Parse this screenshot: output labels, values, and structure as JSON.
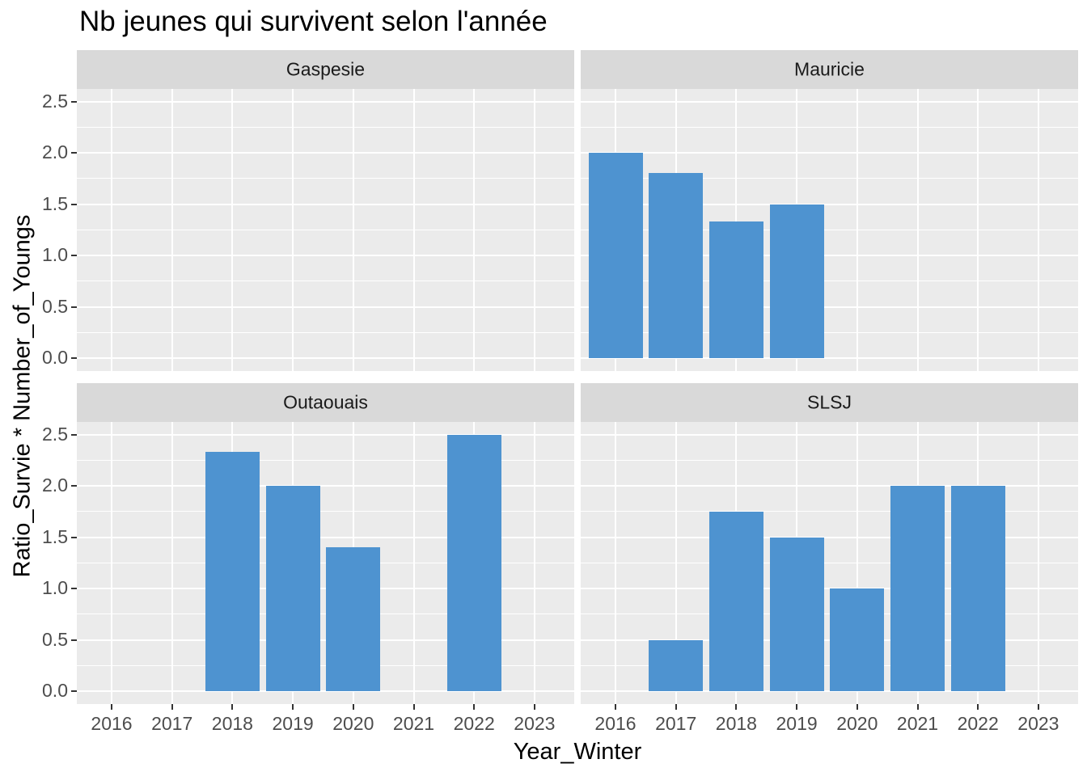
{
  "chart_data": {
    "type": "bar",
    "title": "Nb jeunes qui survivent selon l'année",
    "xlabel": "Year_Winter",
    "ylabel": "Ratio_Survie * Number_of_Youngs",
    "x_tick_labels": [
      "2016",
      "2017",
      "2018",
      "2019",
      "2020",
      "2021",
      "2022",
      "2023"
    ],
    "y_tick_labels": [
      "0.0",
      "0.5",
      "1.0",
      "1.5",
      "2.0",
      "2.5"
    ],
    "x_tick_years": [
      2016,
      2017,
      2018,
      2019,
      2020,
      2021,
      2022,
      2023
    ],
    "y_tick_values": [
      0,
      0.5,
      1,
      1.5,
      2,
      2.5
    ],
    "y_minor_values": [
      0.25,
      0.75,
      1.25,
      1.75,
      2.25
    ],
    "ylim": [
      0,
      2.5
    ],
    "grid": "white major horizontal+vertical, minor horizontal only, on grey panels",
    "legend_position": "none",
    "facet_layout": [
      [
        "Gaspesie",
        "Mauricie"
      ],
      [
        "Outaouais",
        "SLSJ"
      ]
    ],
    "facets": [
      {
        "name": "Gaspesie",
        "row": 0,
        "col": 0,
        "x": [],
        "values": []
      },
      {
        "name": "Mauricie",
        "row": 0,
        "col": 1,
        "x": [
          2016,
          2017,
          2018,
          2019
        ],
        "values": [
          2.0,
          1.8,
          1.33,
          1.5
        ]
      },
      {
        "name": "Outaouais",
        "row": 1,
        "col": 0,
        "x": [
          2018,
          2019,
          2020,
          2022
        ],
        "values": [
          2.33,
          2.0,
          1.4,
          2.5
        ]
      },
      {
        "name": "SLSJ",
        "row": 1,
        "col": 1,
        "x": [
          2017,
          2018,
          2019,
          2020,
          2021,
          2022
        ],
        "values": [
          0.5,
          1.75,
          1.5,
          1.0,
          2.0,
          2.0
        ]
      }
    ],
    "colors": {
      "bar": "#4E93D0",
      "panel_bg": "#EBEBEB",
      "strip_bg": "#D9D9D9",
      "grid": "#FFFFFF",
      "tick_text": "#4D4D4D",
      "title_text": "#000000",
      "strip_text": "#1A1A1A",
      "background": "#FFFFFF"
    }
  }
}
